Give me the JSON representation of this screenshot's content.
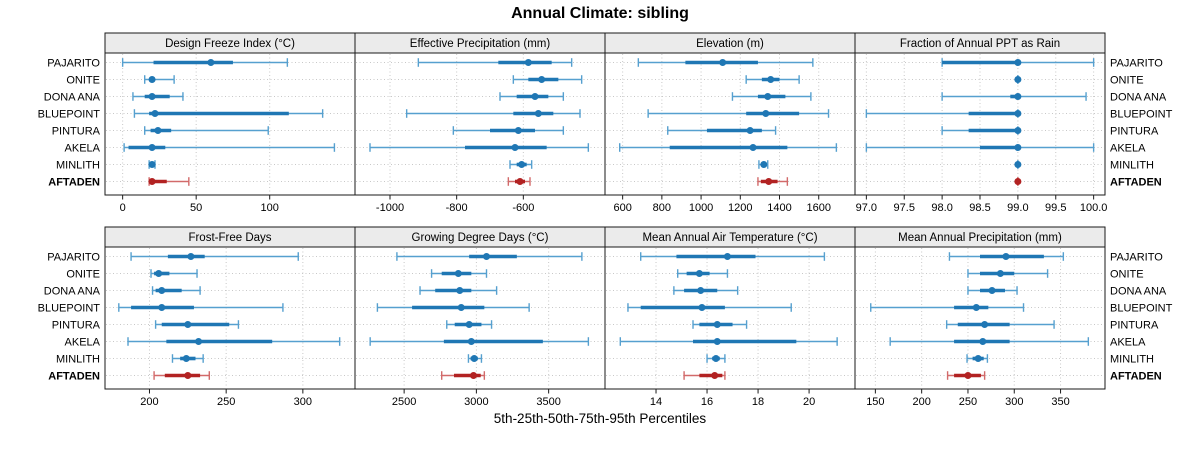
{
  "title": "Annual Climate: sibling",
  "footer": "5th-25th-50th-75th-95th Percentiles",
  "colors": {
    "site": "#1f77b4",
    "site_light": "#56a0cf",
    "highlight": "#b22222",
    "highlight_light": "#d26a6a",
    "grid": "#c8c8c8",
    "strip_bg": "#ebebeb",
    "border": "#1a1a1a",
    "text": "#000000"
  },
  "chart_data": {
    "type": "scatter",
    "style": "percentile-interval-dotplot (5th-25th-50th-75th-95th), trellis of 8 panels, thin line = 5th-95th, thick line = 25th-75th, dot = median",
    "grid": true,
    "percentile_labels": [
      "5th",
      "25th",
      "50th",
      "75th",
      "95th"
    ],
    "sites": [
      "PAJARITO",
      "ONITE",
      "DONA ANA",
      "BLUEPOINT",
      "PINTURA",
      "AKELA",
      "MINLITH",
      "AFTADEN"
    ],
    "highlight_site": "AFTADEN",
    "panels": [
      {
        "title": "Design Freeze Index (°C)",
        "xlim": [
          -12,
          158
        ],
        "ticks": [
          0,
          50,
          100
        ],
        "tick_labels": [
          "0",
          "50",
          "100"
        ],
        "series": [
          {
            "site": "PAJARITO",
            "percentiles": [
              0,
              21,
              60,
              75,
              112
            ]
          },
          {
            "site": "ONITE",
            "percentiles": [
              15,
              18,
              20,
              22,
              35
            ]
          },
          {
            "site": "DONA ANA",
            "percentiles": [
              7,
              15,
              20,
              32,
              41
            ]
          },
          {
            "site": "BLUEPOINT",
            "percentiles": [
              8,
              18,
              22,
              113,
              136
            ]
          },
          {
            "site": "PINTURA",
            "percentiles": [
              15,
              19,
              24,
              33,
              99
            ]
          },
          {
            "site": "AKELA",
            "percentiles": [
              1,
              4,
              20,
              29,
              144
            ]
          },
          {
            "site": "MINLITH",
            "percentiles": [
              18,
              19,
              20,
              21,
              22
            ]
          },
          {
            "site": "AFTADEN",
            "percentiles": [
              18,
              19,
              20,
              30,
              45
            ]
          }
        ]
      },
      {
        "title": "Effective Precipitation (mm)",
        "xlim": [
          -1105,
          -355
        ],
        "ticks": [
          -1000,
          -800,
          -600
        ],
        "tick_labels": [
          "-1000",
          "-800",
          "-600"
        ],
        "series": [
          {
            "site": "PAJARITO",
            "percentiles": [
              -915,
              -675,
              -585,
              -515,
              -455
            ]
          },
          {
            "site": "ONITE",
            "percentiles": [
              -630,
              -585,
              -545,
              -495,
              -425
            ]
          },
          {
            "site": "DONA ANA",
            "percentiles": [
              -670,
              -620,
              -565,
              -525,
              -480
            ]
          },
          {
            "site": "BLUEPOINT",
            "percentiles": [
              -950,
              -630,
              -555,
              -510,
              -430
            ]
          },
          {
            "site": "PINTURA",
            "percentiles": [
              -810,
              -700,
              -615,
              -565,
              -480
            ]
          },
          {
            "site": "AKELA",
            "percentiles": [
              -1060,
              -775,
              -625,
              -530,
              -405
            ]
          },
          {
            "site": "MINLITH",
            "percentiles": [
              -640,
              -620,
              -605,
              -590,
              -575
            ]
          },
          {
            "site": "AFTADEN",
            "percentiles": [
              -645,
              -625,
              -610,
              -595,
              -580
            ]
          }
        ]
      },
      {
        "title": "Elevation (m)",
        "xlim": [
          510,
          1785
        ],
        "ticks": [
          600,
          800,
          1000,
          1200,
          1400,
          1600
        ],
        "tick_labels": [
          "600",
          "800",
          "1000",
          "1200",
          "1400",
          "1600"
        ],
        "series": [
          {
            "site": "PAJARITO",
            "percentiles": [
              680,
              920,
              1110,
              1290,
              1570
            ]
          },
          {
            "site": "ONITE",
            "percentiles": [
              1230,
              1310,
              1355,
              1400,
              1500
            ]
          },
          {
            "site": "DONA ANA",
            "percentiles": [
              1160,
              1290,
              1340,
              1430,
              1560
            ]
          },
          {
            "site": "BLUEPOINT",
            "percentiles": [
              730,
              1230,
              1330,
              1500,
              1650
            ]
          },
          {
            "site": "PINTURA",
            "percentiles": [
              830,
              1030,
              1250,
              1310,
              1380
            ]
          },
          {
            "site": "AKELA",
            "percentiles": [
              585,
              840,
              1265,
              1440,
              1690
            ]
          },
          {
            "site": "MINLITH",
            "percentiles": [
              1295,
              1310,
              1320,
              1330,
              1340
            ]
          },
          {
            "site": "AFTADEN",
            "percentiles": [
              1290,
              1305,
              1345,
              1390,
              1440
            ]
          }
        ]
      },
      {
        "title": "Fraction of Annual PPT as Rain",
        "xlim": [
          96.85,
          100.15
        ],
        "ticks": [
          97.0,
          97.5,
          98.0,
          98.5,
          99.0,
          99.5,
          100.0
        ],
        "tick_labels": [
          "97.0",
          "97.5",
          "98.0",
          "98.5",
          "99.0",
          "99.5",
          "100.0"
        ],
        "series": [
          {
            "site": "PAJARITO",
            "percentiles": [
              98.0,
              98.0,
              99.0,
              99.0,
              100.0
            ]
          },
          {
            "site": "ONITE",
            "percentiles": [
              99.0,
              99.0,
              99.0,
              99.0,
              99.0
            ]
          },
          {
            "site": "DONA ANA",
            "percentiles": [
              98.0,
              98.9,
              99.0,
              99.0,
              99.9
            ]
          },
          {
            "site": "BLUEPOINT",
            "percentiles": [
              97.0,
              98.35,
              99.0,
              99.0,
              99.0
            ]
          },
          {
            "site": "PINTURA",
            "percentiles": [
              98.0,
              98.35,
              99.0,
              99.0,
              99.0
            ]
          },
          {
            "site": "AKELA",
            "percentiles": [
              97.0,
              98.5,
              99.0,
              99.0,
              100.0
            ]
          },
          {
            "site": "MINLITH",
            "percentiles": [
              99.0,
              99.0,
              99.0,
              99.0,
              99.0
            ]
          },
          {
            "site": "AFTADEN",
            "percentiles": [
              99.0,
              99.0,
              99.0,
              99.0,
              99.0
            ]
          }
        ]
      },
      {
        "title": "Frost-Free Days",
        "xlim": [
          171,
          334
        ],
        "ticks": [
          200,
          250,
          300
        ],
        "tick_labels": [
          "200",
          "250",
          "300"
        ],
        "series": [
          {
            "site": "PAJARITO",
            "percentiles": [
              188,
              212,
              227,
              236,
              297
            ]
          },
          {
            "site": "ONITE",
            "percentiles": [
              201,
              203,
              206,
              213,
              231
            ]
          },
          {
            "site": "DONA ANA",
            "percentiles": [
              202,
              204,
              208,
              221,
              233
            ]
          },
          {
            "site": "BLUEPOINT",
            "percentiles": [
              180,
              188,
              208,
              229,
              287
            ]
          },
          {
            "site": "PINTURA",
            "percentiles": [
              204,
              208,
              225,
              252,
              258
            ]
          },
          {
            "site": "AKELA",
            "percentiles": [
              186,
              211,
              232,
              280,
              324
            ]
          },
          {
            "site": "MINLITH",
            "percentiles": [
              215,
              220,
              224,
              230,
              235
            ]
          },
          {
            "site": "AFTADEN",
            "percentiles": [
              203,
              210,
              225,
              233,
              239
            ]
          }
        ]
      },
      {
        "title": "Growing Degree Days (°C)",
        "xlim": [
          2160,
          3890
        ],
        "ticks": [
          2500,
          3000,
          3500
        ],
        "tick_labels": [
          "2500",
          "3000",
          "3500"
        ],
        "series": [
          {
            "site": "PAJARITO",
            "percentiles": [
              2450,
              2950,
              3070,
              3280,
              3730
            ]
          },
          {
            "site": "ONITE",
            "percentiles": [
              2690,
              2760,
              2875,
              2965,
              3070
            ]
          },
          {
            "site": "DONA ANA",
            "percentiles": [
              2610,
              2715,
              2885,
              2965,
              3140
            ]
          },
          {
            "site": "BLUEPOINT",
            "percentiles": [
              2315,
              2555,
              2895,
              3055,
              3365
            ]
          },
          {
            "site": "PINTURA",
            "percentiles": [
              2795,
              2850,
              2950,
              3035,
              3105
            ]
          },
          {
            "site": "AKELA",
            "percentiles": [
              2265,
              2775,
              2965,
              3460,
              3775
            ]
          },
          {
            "site": "MINLITH",
            "percentiles": [
              2945,
              2960,
              2985,
              3010,
              3035
            ]
          },
          {
            "site": "AFTADEN",
            "percentiles": [
              2760,
              2845,
              2980,
              3030,
              3055
            ]
          }
        ]
      },
      {
        "title": "Mean Annual Air Temperature (°C)",
        "xlim": [
          12.0,
          21.8
        ],
        "ticks": [
          14,
          16,
          18,
          20
        ],
        "tick_labels": [
          "14",
          "16",
          "18",
          "20"
        ],
        "series": [
          {
            "site": "PAJARITO",
            "percentiles": [
              13.4,
              14.8,
              16.8,
              17.9,
              20.6
            ]
          },
          {
            "site": "ONITE",
            "percentiles": [
              14.85,
              15.2,
              15.7,
              16.1,
              16.8
            ]
          },
          {
            "site": "DONA ANA",
            "percentiles": [
              14.7,
              15.1,
              15.75,
              16.4,
              17.2
            ]
          },
          {
            "site": "BLUEPOINT",
            "percentiles": [
              12.9,
              13.4,
              15.8,
              16.7,
              19.3
            ]
          },
          {
            "site": "PINTURA",
            "percentiles": [
              15.45,
              15.7,
              16.4,
              17.0,
              17.55
            ]
          },
          {
            "site": "AKELA",
            "percentiles": [
              12.6,
              15.45,
              16.4,
              19.5,
              21.1
            ]
          },
          {
            "site": "MINLITH",
            "percentiles": [
              16.0,
              16.2,
              16.35,
              16.5,
              16.7
            ]
          },
          {
            "site": "AFTADEN",
            "percentiles": [
              15.1,
              15.7,
              16.3,
              16.6,
              16.7
            ]
          }
        ]
      },
      {
        "title": "Mean Annual Precipitation (mm)",
        "xlim": [
          128,
          398
        ],
        "ticks": [
          150,
          200,
          250,
          300,
          350
        ],
        "tick_labels": [
          "150",
          "200",
          "250",
          "300",
          "350"
        ],
        "series": [
          {
            "site": "PAJARITO",
            "percentiles": [
              230,
              263,
              291,
              332,
              353
            ]
          },
          {
            "site": "ONITE",
            "percentiles": [
              250,
              263,
              285,
              300,
              336
            ]
          },
          {
            "site": "DONA ANA",
            "percentiles": [
              250,
              263,
              276,
              290,
              303
            ]
          },
          {
            "site": "BLUEPOINT",
            "percentiles": [
              145,
              235,
              259,
              272,
              310
            ]
          },
          {
            "site": "PINTURA",
            "percentiles": [
              227,
              239,
              268,
              295,
              343
            ]
          },
          {
            "site": "AKELA",
            "percentiles": [
              166,
              235,
              266,
              295,
              380
            ]
          },
          {
            "site": "MINLITH",
            "percentiles": [
              249,
              255,
              261,
              267,
              271
            ]
          },
          {
            "site": "AFTADEN",
            "percentiles": [
              228,
              235,
              250,
              264,
              268
            ]
          }
        ]
      }
    ]
  }
}
